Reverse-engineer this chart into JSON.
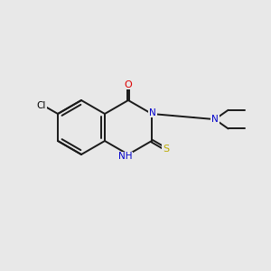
{
  "bg_color": "#e8e8e8",
  "atom_colors": {
    "C": "#000000",
    "N": "#0000cc",
    "O": "#dd0000",
    "S": "#bbaa00",
    "Cl": "#000000",
    "H": "#000000"
  },
  "bond_color": "#1a1a1a",
  "bond_width": 1.4,
  "figsize": [
    3.0,
    3.0
  ],
  "dpi": 100,
  "xlim": [
    0,
    10
  ],
  "ylim": [
    0,
    10
  ],
  "font_size": 7.5
}
